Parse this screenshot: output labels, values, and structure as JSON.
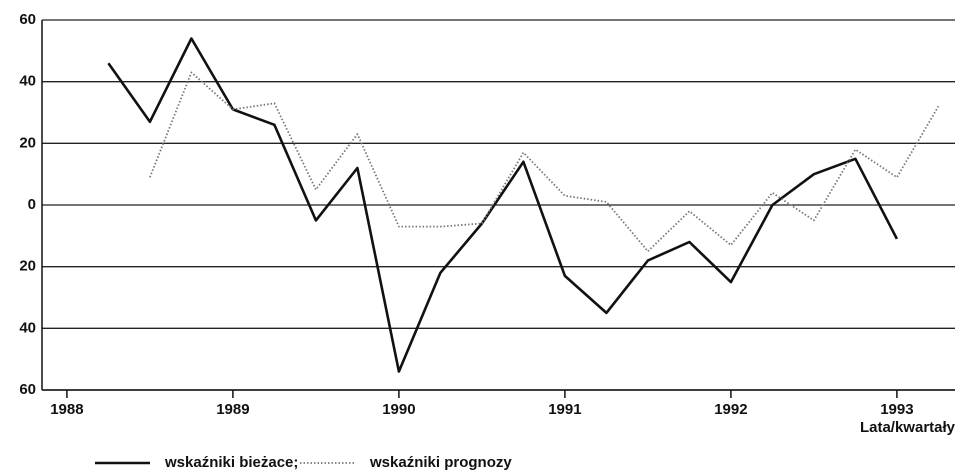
{
  "chart_data": {
    "type": "line",
    "x": [
      1988.25,
      1988.5,
      1988.75,
      1989,
      1989.25,
      1989.5,
      1989.75,
      1990,
      1990.25,
      1990.5,
      1990.75,
      1991,
      1991.25,
      1991.5,
      1991.75,
      1992,
      1992.25,
      1992.5,
      1992.75,
      1993,
      1993.25
    ],
    "series": [
      {
        "name": "wskaźniki bieżace;",
        "color": "#111111",
        "style": "solid",
        "values": [
          46,
          27,
          54,
          31,
          26,
          -5,
          12,
          -54,
          -22,
          -6,
          14,
          -23,
          -35,
          -18,
          -12,
          -25,
          0,
          10,
          15,
          -11,
          null
        ]
      },
      {
        "name": "wskaźniki prognozy",
        "color": "#777777",
        "style": "dotted",
        "values": [
          null,
          9,
          43,
          31,
          33,
          5,
          23,
          -7,
          -7,
          -6,
          17,
          3,
          1,
          -15,
          -2,
          -13,
          4,
          -5,
          18,
          9,
          32
        ]
      }
    ],
    "xlabel": "Lata/kwartały",
    "xlim": [
      1987.85,
      1993.35
    ],
    "xticks": [
      1988,
      1989,
      1990,
      1991,
      1992,
      1993
    ],
    "ylim": [
      -60,
      60
    ],
    "yticks": [
      {
        "value": -60,
        "label": "60"
      },
      {
        "value": -40,
        "label": "40"
      },
      {
        "value": -20,
        "label": "20"
      },
      0,
      20,
      40,
      60
    ],
    "grid": true
  }
}
